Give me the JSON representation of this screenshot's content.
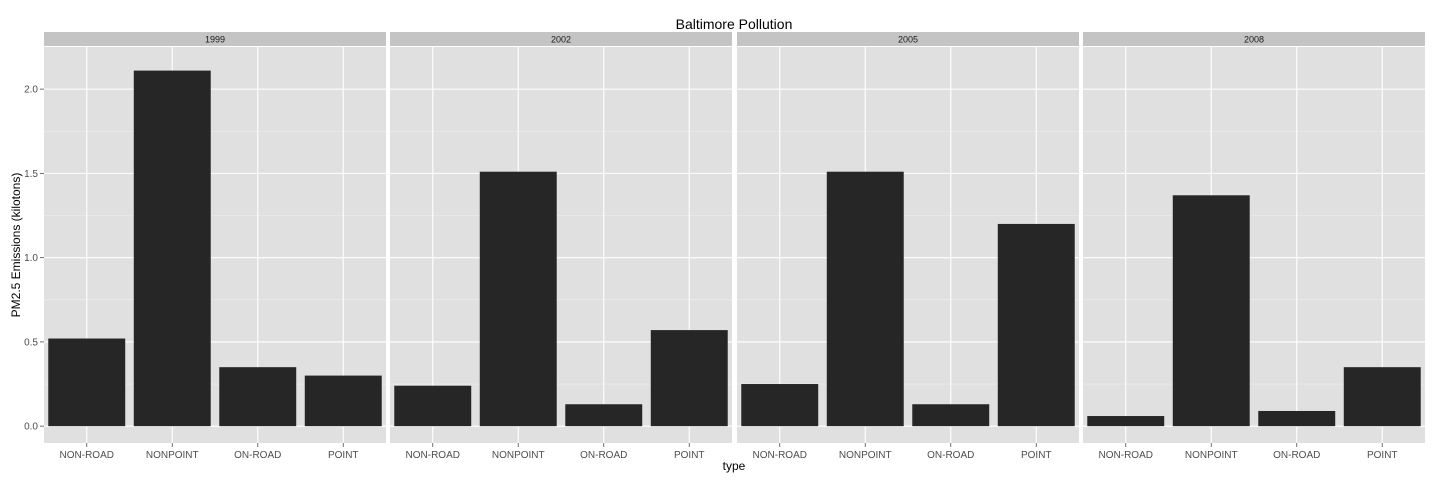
{
  "chart_data": {
    "type": "bar",
    "title": "Baltimore Pollution",
    "xlabel": "type",
    "ylabel": "PM2.5 Emissions (kilotons)",
    "ylim": [
      -0.1,
      2.25
    ],
    "yticks": [
      "0.0",
      "0.5",
      "1.0",
      "1.5",
      "2.0"
    ],
    "categories": [
      "NON-ROAD",
      "NONPOINT",
      "ON-ROAD",
      "POINT"
    ],
    "facets": [
      {
        "label": "1999",
        "values": [
          0.52,
          2.11,
          0.35,
          0.3
        ]
      },
      {
        "label": "2002",
        "values": [
          0.24,
          1.51,
          0.13,
          0.57
        ]
      },
      {
        "label": "2005",
        "values": [
          0.25,
          1.51,
          0.13,
          1.2
        ]
      },
      {
        "label": "2008",
        "values": [
          0.06,
          1.37,
          0.09,
          0.35
        ]
      }
    ],
    "grid": true,
    "colors": {
      "bar": "#262626",
      "panel": "#e0e0e0",
      "strip": "#c4c4c4",
      "grid_major": "#ffffff",
      "grid_minor": "#f0f0f0"
    }
  }
}
